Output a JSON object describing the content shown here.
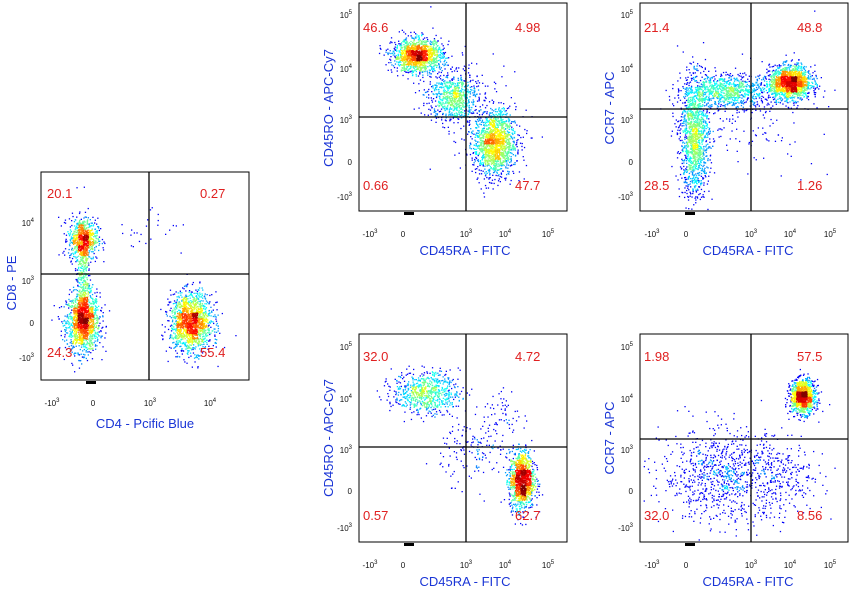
{
  "colors": {
    "axis_label": "#1a35d6",
    "quadrant_value": "#e02020",
    "gate_line": "#000000"
  },
  "chart_data": [
    {
      "type": "scatter",
      "id": "p0",
      "xlabel": "CD4 - Pcific Blue",
      "ylabel": "CD8 - PE",
      "quadrants": {
        "ul": "20.1",
        "ur": "0.27",
        "ll": "24.3",
        "lr": "55.4"
      },
      "x_tick_labels": [
        "-10^3",
        "0",
        "10^3",
        "10^4"
      ],
      "y_tick_labels": [
        "-10^3",
        "0",
        "10^3",
        "10^4"
      ],
      "clusters": [
        {
          "x": 0.2,
          "y": 0.28,
          "sx": 0.04,
          "sy": 0.07,
          "n": 1300
        },
        {
          "x": 0.2,
          "y": 0.68,
          "sx": 0.035,
          "sy": 0.05,
          "n": 700
        },
        {
          "x": 0.2,
          "y": 0.5,
          "sx": 0.015,
          "sy": 0.12,
          "n": 350
        },
        {
          "x": 0.72,
          "y": 0.28,
          "sx": 0.05,
          "sy": 0.07,
          "n": 1500
        },
        {
          "x": 0.52,
          "y": 0.72,
          "sx": 0.08,
          "sy": 0.08,
          "n": 25
        }
      ]
    },
    {
      "type": "scatter",
      "id": "p1",
      "xlabel": "CD45RA - FITC",
      "ylabel": "CD45RO - APC-Cy7",
      "quadrants": {
        "ul": "46.6",
        "ur": "4.98",
        "ll": "0.66",
        "lr": "47.7"
      },
      "x_tick_labels": [
        "-10^3",
        "0",
        "10^3",
        "10^4",
        "10^5"
      ],
      "y_tick_labels": [
        "-10^3",
        "0",
        "10^3",
        "10^4",
        "10^5"
      ],
      "clusters": [
        {
          "x": 0.28,
          "y": 0.75,
          "sx": 0.06,
          "sy": 0.04,
          "n": 1300
        },
        {
          "x": 0.45,
          "y": 0.55,
          "sx": 0.06,
          "sy": 0.06,
          "n": 700
        },
        {
          "x": 0.65,
          "y": 0.33,
          "sx": 0.05,
          "sy": 0.08,
          "n": 1400
        },
        {
          "x": 0.58,
          "y": 0.45,
          "sx": 0.12,
          "sy": 0.15,
          "n": 90
        }
      ]
    },
    {
      "type": "scatter",
      "id": "p2",
      "xlabel": "CD45RA - FITC",
      "ylabel": "CCR7 - APC",
      "quadrants": {
        "ul": "21.4",
        "ur": "48.8",
        "ll": "28.5",
        "lr": "1.26"
      },
      "x_tick_labels": [
        "-10^3",
        "0",
        "10^3",
        "10^4",
        "10^5"
      ],
      "y_tick_labels": [
        "-10^3",
        "0",
        "10^3",
        "10^4",
        "10^5"
      ],
      "clusters": [
        {
          "x": 0.72,
          "y": 0.62,
          "sx": 0.05,
          "sy": 0.04,
          "n": 1500
        },
        {
          "x": 0.42,
          "y": 0.58,
          "sx": 0.11,
          "sy": 0.04,
          "n": 900
        },
        {
          "x": 0.26,
          "y": 0.35,
          "sx": 0.035,
          "sy": 0.14,
          "n": 1300
        },
        {
          "x": 0.55,
          "y": 0.45,
          "sx": 0.15,
          "sy": 0.12,
          "n": 120
        }
      ]
    },
    {
      "type": "scatter",
      "id": "p3",
      "xlabel": "CD45RA - FITC",
      "ylabel": "CD45RO - APC-Cy7",
      "quadrants": {
        "ul": "32.0",
        "ur": "4.72",
        "ll": "0.57",
        "lr": "62.7"
      },
      "x_tick_labels": [
        "-10^3",
        "0",
        "10^3",
        "10^4",
        "10^5"
      ],
      "y_tick_labels": [
        "-10^3",
        "0",
        "10^3",
        "10^4",
        "10^5"
      ],
      "clusters": [
        {
          "x": 0.32,
          "y": 0.72,
          "sx": 0.08,
          "sy": 0.05,
          "n": 700
        },
        {
          "x": 0.78,
          "y": 0.3,
          "sx": 0.03,
          "sy": 0.07,
          "n": 1200
        },
        {
          "x": 0.7,
          "y": 0.62,
          "sx": 0.04,
          "sy": 0.06,
          "n": 50
        },
        {
          "x": 0.55,
          "y": 0.45,
          "sx": 0.08,
          "sy": 0.08,
          "n": 150
        }
      ]
    },
    {
      "type": "scatter",
      "id": "p4",
      "xlabel": "CD45RA - FITC",
      "ylabel": "CCR7 - APC",
      "quadrants": {
        "ul": "1.98",
        "ur": "57.5",
        "ll": "32.0",
        "lr": "8.56"
      },
      "x_tick_labels": [
        "-10^3",
        "0",
        "10^3",
        "10^4",
        "10^5"
      ],
      "y_tick_labels": [
        "-10^3",
        "0",
        "10^3",
        "10^4",
        "10^5"
      ],
      "clusters": [
        {
          "x": 0.78,
          "y": 0.7,
          "sx": 0.03,
          "sy": 0.04,
          "n": 1100
        },
        {
          "x": 0.4,
          "y": 0.32,
          "sx": 0.15,
          "sy": 0.11,
          "n": 900
        },
        {
          "x": 0.7,
          "y": 0.3,
          "sx": 0.09,
          "sy": 0.09,
          "n": 200
        }
      ]
    }
  ]
}
